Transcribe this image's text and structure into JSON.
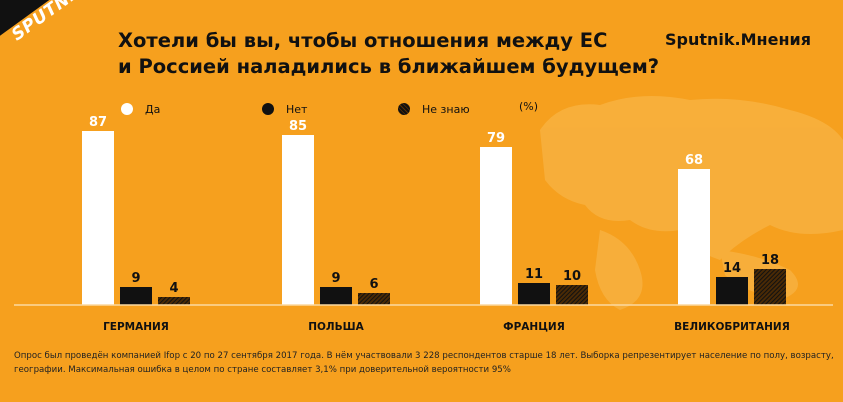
{
  "header": {
    "logo": "SPUTNIK",
    "title_line1": "Хотели бы вы, чтобы отношения между ЕС",
    "title_line2": "и Россией наладились в ближайшем будущем?",
    "brand": "Sputnik.Мнения"
  },
  "legend": {
    "yes": "Да",
    "no": "Нет",
    "dont_know": "Не знаю",
    "unit": "(%)"
  },
  "colors": {
    "background": "#f6a01e",
    "yes": "#ffffff",
    "no": "#111111",
    "dont_know": "#3a2208"
  },
  "chart_data": {
    "type": "bar",
    "categories": [
      "ГЕРМАНИЯ",
      "ПОЛЬША",
      "ФРАНЦИЯ",
      "ВЕЛИКОБРИТАНИЯ"
    ],
    "series": [
      {
        "name": "Да",
        "values": [
          87,
          85,
          79,
          68
        ]
      },
      {
        "name": "Нет",
        "values": [
          9,
          9,
          11,
          14
        ]
      },
      {
        "name": "Не знаю",
        "values": [
          4,
          6,
          10,
          18
        ]
      }
    ],
    "ylim": [
      0,
      100
    ],
    "grid": false,
    "legend_position": "top-left"
  },
  "footnote": {
    "line1": "Опрос был проведён компанией Ifop с 20 по 27 сентября 2017 года. В нём участвовали 3 228 респондентов старше 18 лет. Выборка репрезентирует население по полу, возрасту,",
    "line2": "географии. Максимальная ошибка в целом по стране составляет 3,1% при доверительной вероятности 95%"
  }
}
